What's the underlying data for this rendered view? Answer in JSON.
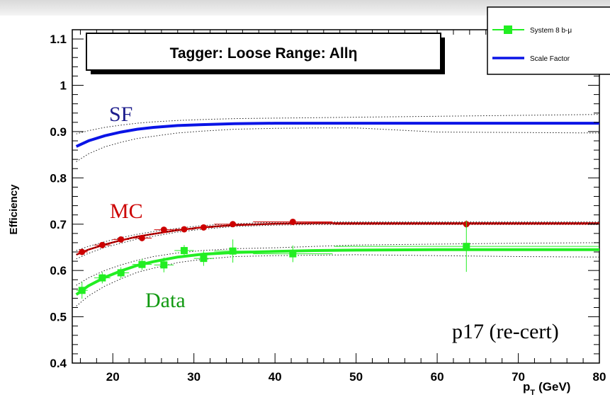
{
  "colors": {
    "sf": "#0a14e6",
    "sf_text": "#1c1c8c",
    "mc": "#cc0000",
    "mc_text": "#cc0000",
    "data": "#22ee22",
    "data_text": "#119911",
    "band": "#222222",
    "frame": "#000000"
  },
  "chart_data": {
    "type": "line",
    "title": "Tagger: Loose Range: Allη",
    "xlabel": "p",
    "xlabel_sub": "T",
    "xlabel_unit": "(GeV)",
    "ylabel": "Efficiency",
    "xlim": [
      15,
      80
    ],
    "ylim": [
      0.4,
      1.12
    ],
    "x_ticks": [
      20,
      30,
      40,
      50,
      60,
      70,
      80
    ],
    "y_ticks": [
      0.4,
      0.5,
      0.6,
      0.7,
      0.8,
      0.9,
      1,
      1.1
    ],
    "y_tick_labels": [
      "0.4",
      "0.5",
      "0.6",
      "0.7",
      "0.8",
      "0.9",
      "1",
      "1.1"
    ],
    "legend": {
      "placement": "top-right",
      "entries": [
        {
          "label": "System 8 b-μ",
          "color_key": "data",
          "marker": "square"
        },
        {
          "label": "Scale Factor",
          "color_key": "sf",
          "marker": "line"
        }
      ]
    },
    "annotations": {
      "sf": "SF",
      "mc": "MC",
      "data": "Data",
      "version": "p17 (re-cert)"
    },
    "curves": {
      "sf": {
        "x": [
          15.5,
          17,
          19,
          21,
          23,
          25,
          28,
          31,
          35,
          40,
          45,
          50,
          60,
          70,
          80
        ],
        "y": [
          0.868,
          0.88,
          0.891,
          0.899,
          0.905,
          0.909,
          0.913,
          0.915,
          0.917,
          0.918,
          0.918,
          0.918,
          0.918,
          0.918,
          0.918
        ],
        "band_up": [
          0.895,
          0.902,
          0.909,
          0.914,
          0.918,
          0.921,
          0.924,
          0.926,
          0.928,
          0.929,
          0.93,
          0.931,
          0.933,
          0.935,
          0.937
        ],
        "band_down": [
          0.835,
          0.852,
          0.867,
          0.877,
          0.885,
          0.89,
          0.897,
          0.901,
          0.905,
          0.907,
          0.908,
          0.908,
          0.899,
          0.898,
          0.897
        ]
      },
      "mc": {
        "x": [
          15.5,
          17,
          19,
          21,
          23,
          25,
          28,
          31,
          35,
          40,
          45,
          50,
          60,
          70,
          80
        ],
        "y": [
          0.634,
          0.645,
          0.656,
          0.665,
          0.673,
          0.679,
          0.687,
          0.693,
          0.698,
          0.701,
          0.702,
          0.702,
          0.702,
          0.702,
          0.702
        ],
        "band_up": [
          0.643,
          0.652,
          0.662,
          0.671,
          0.678,
          0.684,
          0.691,
          0.697,
          0.701,
          0.704,
          0.705,
          0.705,
          0.705,
          0.705,
          0.705
        ],
        "band_down": [
          0.625,
          0.637,
          0.65,
          0.659,
          0.668,
          0.674,
          0.683,
          0.689,
          0.695,
          0.698,
          0.699,
          0.699,
          0.699,
          0.699,
          0.699
        ]
      },
      "data": {
        "x": [
          15.5,
          17,
          19,
          21,
          23,
          25,
          28,
          31,
          35,
          40,
          45,
          50,
          60,
          70,
          80
        ],
        "y": [
          0.548,
          0.567,
          0.585,
          0.599,
          0.611,
          0.619,
          0.629,
          0.635,
          0.639,
          0.641,
          0.643,
          0.644,
          0.645,
          0.645,
          0.645
        ],
        "band_up": [
          0.568,
          0.584,
          0.6,
          0.612,
          0.622,
          0.63,
          0.638,
          0.643,
          0.647,
          0.649,
          0.652,
          0.655,
          0.657,
          0.659,
          0.66
        ],
        "band_down": [
          0.523,
          0.545,
          0.566,
          0.582,
          0.596,
          0.605,
          0.617,
          0.624,
          0.63,
          0.632,
          0.633,
          0.634,
          0.632,
          0.63,
          0.629
        ]
      }
    },
    "points": {
      "mc": [
        {
          "x": 16.2,
          "y": 0.64,
          "xerr": 0.7,
          "yerr": 0.006
        },
        {
          "x": 18.7,
          "y": 0.655,
          "xerr": 1.0,
          "yerr": 0.006
        },
        {
          "x": 21.0,
          "y": 0.667,
          "xerr": 1.0,
          "yerr": 0.006
        },
        {
          "x": 23.6,
          "y": 0.67,
          "xerr": 1.2,
          "yerr": 0.007
        },
        {
          "x": 26.3,
          "y": 0.688,
          "xerr": 1.2,
          "yerr": 0.006
        },
        {
          "x": 28.8,
          "y": 0.689,
          "xerr": 1.2,
          "yerr": 0.006
        },
        {
          "x": 31.2,
          "y": 0.693,
          "xerr": 1.2,
          "yerr": 0.006
        },
        {
          "x": 34.8,
          "y": 0.7,
          "xerr": 2.3,
          "yerr": 0.006
        },
        {
          "x": 42.2,
          "y": 0.705,
          "xerr": 4.9,
          "yerr": 0.005
        },
        {
          "x": 63.6,
          "y": 0.7,
          "xerr": 16.3,
          "yerr": 0.008
        }
      ],
      "data": [
        {
          "x": 16.2,
          "y": 0.557,
          "xerr": 0.7,
          "yerr": 0.018
        },
        {
          "x": 18.7,
          "y": 0.584,
          "xerr": 1.0,
          "yerr": 0.012
        },
        {
          "x": 21.0,
          "y": 0.595,
          "xerr": 1.0,
          "yerr": 0.012
        },
        {
          "x": 23.6,
          "y": 0.613,
          "xerr": 1.2,
          "yerr": 0.012
        },
        {
          "x": 26.3,
          "y": 0.612,
          "xerr": 1.2,
          "yerr": 0.016
        },
        {
          "x": 28.8,
          "y": 0.643,
          "xerr": 1.2,
          "yerr": 0.012
        },
        {
          "x": 31.2,
          "y": 0.626,
          "xerr": 1.2,
          "yerr": 0.016
        },
        {
          "x": 34.8,
          "y": 0.642,
          "xerr": 2.3,
          "yerr": 0.025
        },
        {
          "x": 42.2,
          "y": 0.636,
          "xerr": 4.9,
          "yerr": 0.018
        },
        {
          "x": 63.6,
          "y": 0.652,
          "xerr": 16.3,
          "yerr": 0.055
        }
      ]
    }
  }
}
